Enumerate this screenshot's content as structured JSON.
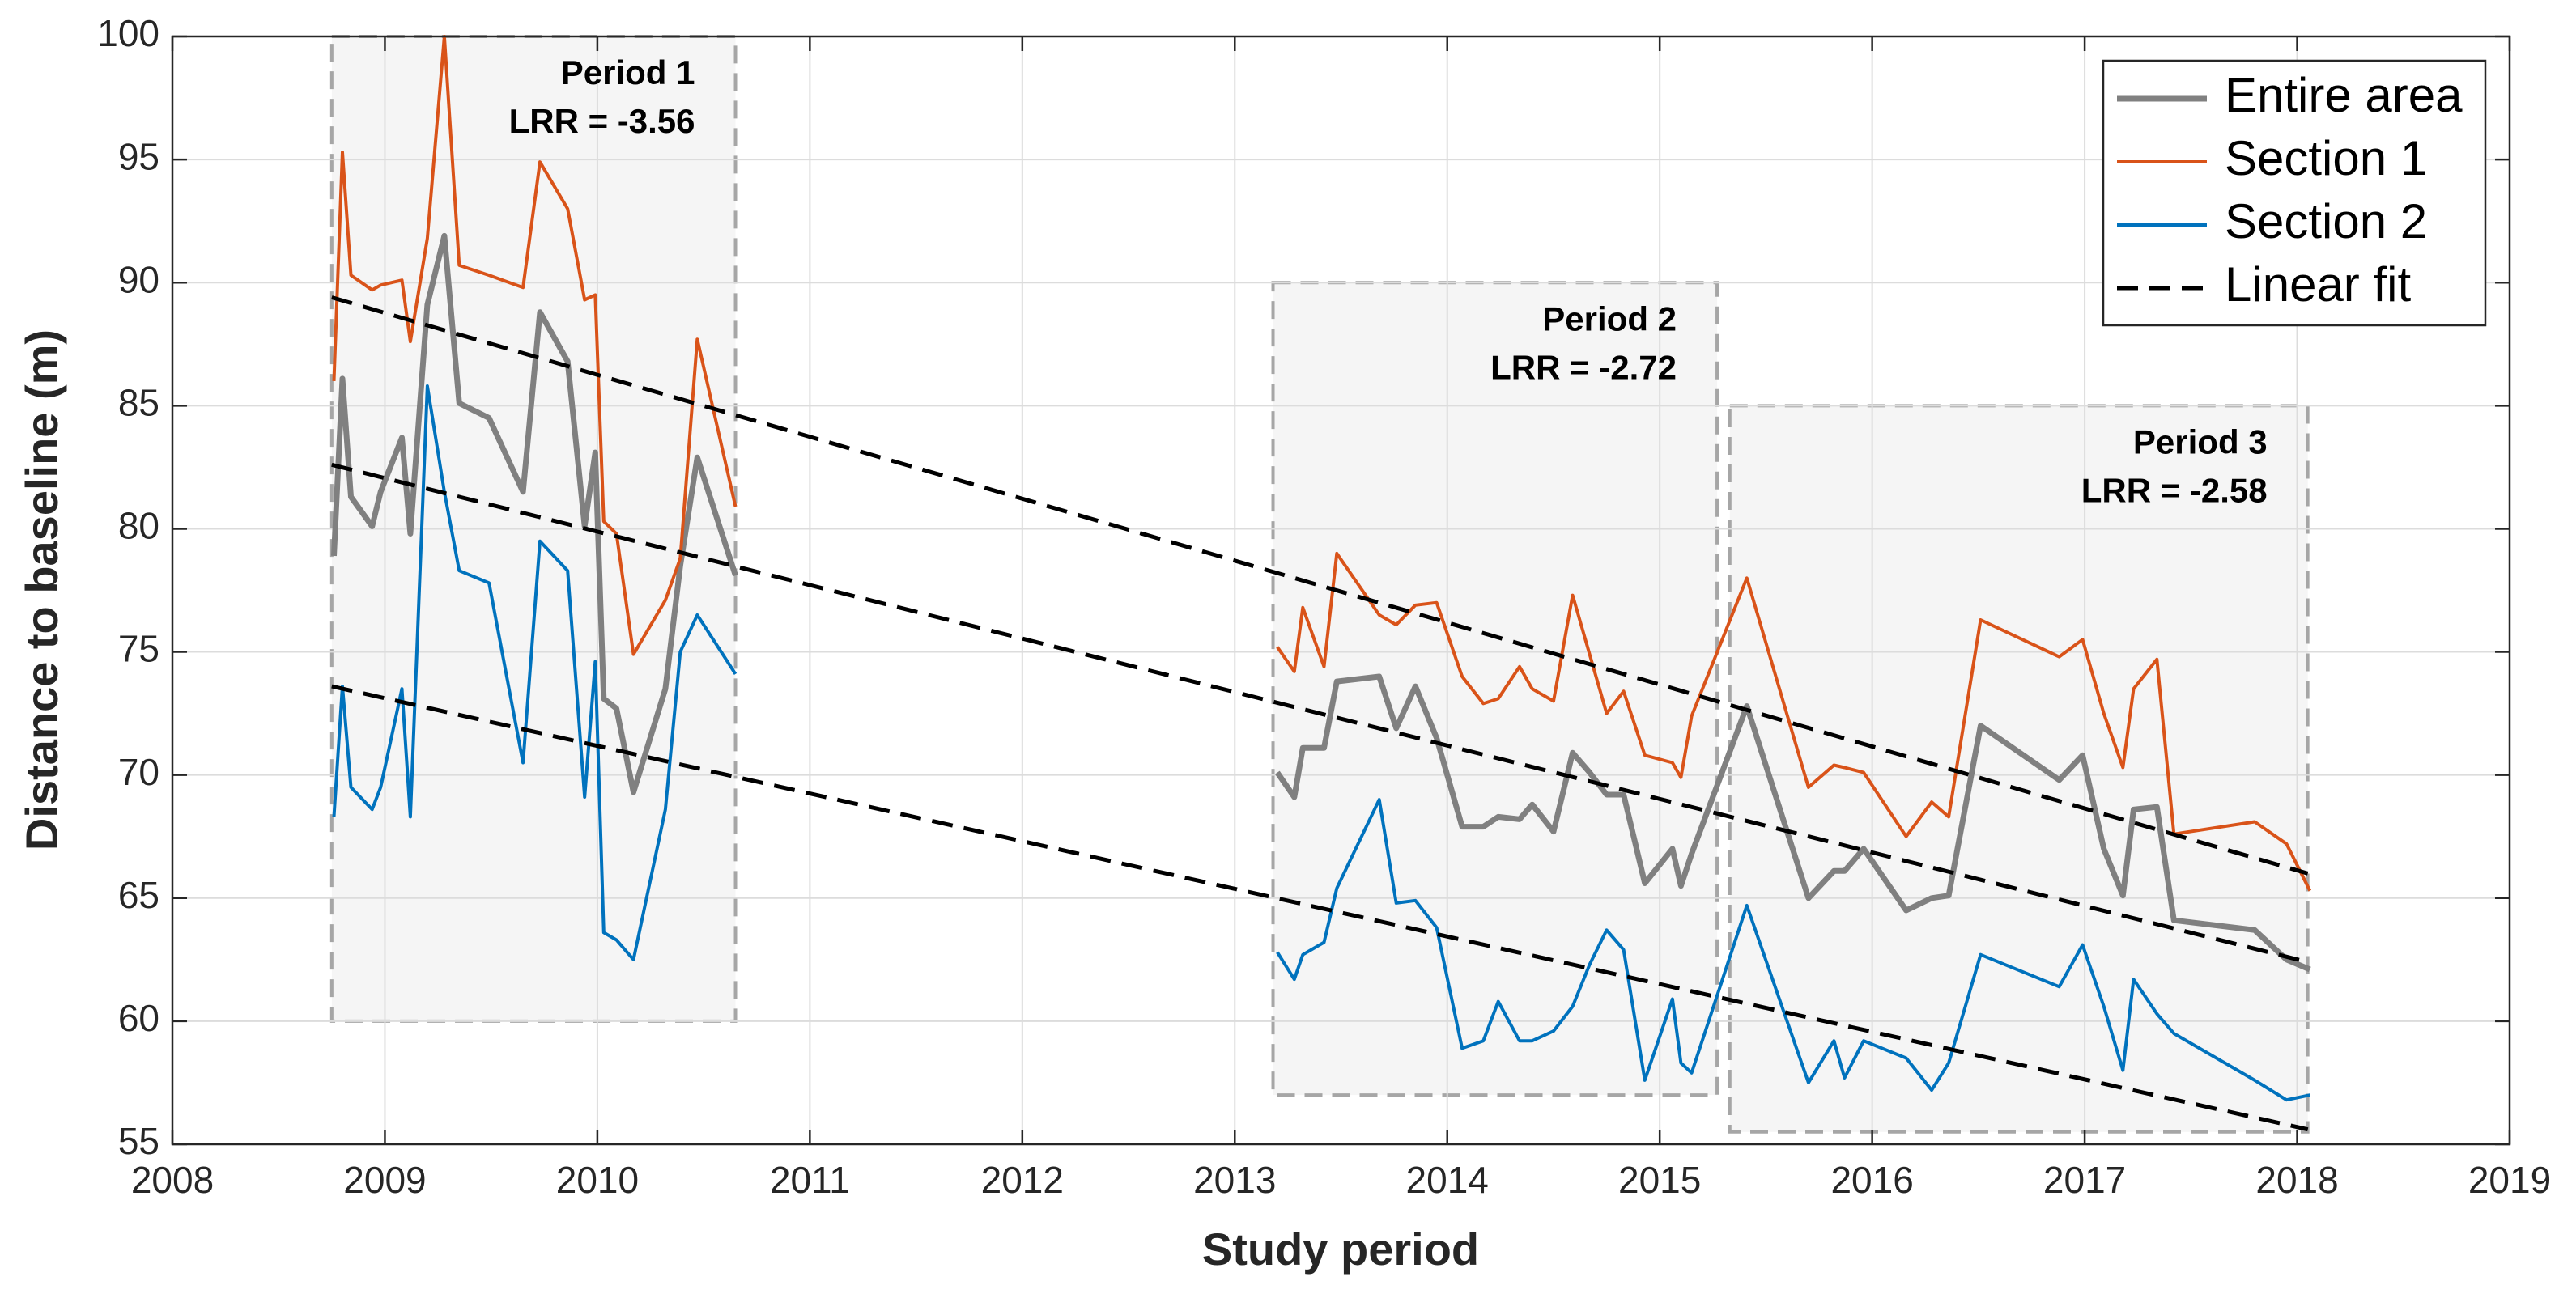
{
  "chart_data": {
    "type": "line",
    "xlabel": "Study period",
    "ylabel": "Distance to baseline (m)",
    "xlim": [
      2008,
      2019
    ],
    "xticks": [
      2008,
      2009,
      2010,
      2011,
      2012,
      2013,
      2014,
      2015,
      2016,
      2017,
      2018,
      2019
    ],
    "ylim": [
      55,
      100
    ],
    "yticks": [
      55,
      60,
      65,
      70,
      75,
      80,
      85,
      90,
      95,
      100
    ],
    "grid": true,
    "legend": "upper right",
    "x": [
      2008.76,
      2008.8,
      2008.84,
      2008.94,
      2008.98,
      2009.08,
      2009.12,
      2009.2,
      2009.28,
      2009.35,
      2009.49,
      2009.65,
      2009.73,
      2009.86,
      2009.94,
      2009.99,
      2010.03,
      2010.09,
      2010.17,
      2010.32,
      2010.39,
      2010.47,
      2010.65,
      null,
      2013.2,
      2013.28,
      2013.32,
      2013.42,
      2013.48,
      2013.68,
      2013.76,
      2013.85,
      2013.95,
      2014.07,
      2014.17,
      2014.24,
      2014.34,
      2014.4,
      2014.5,
      2014.59,
      2014.67,
      2014.75,
      2014.83,
      2014.93,
      2015.06,
      2015.1,
      2015.15,
      2015.41,
      2015.7,
      2015.82,
      2015.87,
      2015.96,
      2016.16,
      2016.28,
      2016.36,
      2016.51,
      2016.88,
      2016.99,
      2017.09,
      2017.18,
      2017.23,
      2017.34,
      2017.42,
      2017.8,
      2017.95,
      2018.06
    ],
    "series": [
      {
        "name": "Entire area",
        "color": "#808080",
        "width": 7,
        "values": [
          78.9,
          86.1,
          81.3,
          80.1,
          81.5,
          83.7,
          79.8,
          89.1,
          91.9,
          85.1,
          84.5,
          81.5,
          88.8,
          86.8,
          80.1,
          83.1,
          73.1,
          72.7,
          69.3,
          73.5,
          78.5,
          82.9,
          78.1,
          null,
          70.1,
          69.1,
          71.1,
          71.1,
          73.8,
          74.0,
          71.9,
          73.6,
          71.5,
          67.9,
          67.9,
          68.3,
          68.2,
          68.8,
          67.7,
          70.9,
          70.1,
          69.2,
          69.2,
          65.6,
          67.0,
          65.5,
          66.8,
          72.8,
          65.0,
          66.1,
          66.1,
          67.0,
          64.5,
          65.0,
          65.1,
          72.0,
          69.8,
          70.8,
          67.0,
          65.1,
          68.6,
          68.7,
          64.1,
          63.7,
          62.5,
          62.1
        ]
      },
      {
        "name": "Section 1",
        "color": "#d95319",
        "width": 4,
        "values": [
          86.0,
          95.3,
          90.3,
          89.7,
          89.9,
          90.1,
          87.6,
          91.8,
          100,
          90.7,
          90.3,
          89.8,
          94.9,
          93.0,
          89.3,
          89.5,
          80.3,
          79.8,
          74.9,
          77.1,
          78.8,
          87.7,
          80.9,
          null,
          75.2,
          74.2,
          76.8,
          74.4,
          79.0,
          76.5,
          76.1,
          76.9,
          77.0,
          74.0,
          72.9,
          73.1,
          74.4,
          73.5,
          73.0,
          77.3,
          74.9,
          72.5,
          73.4,
          70.8,
          70.5,
          69.9,
          72.4,
          78.0,
          69.5,
          70.4,
          70.3,
          70.1,
          67.5,
          68.9,
          68.3,
          76.3,
          74.8,
          75.5,
          72.5,
          70.3,
          73.5,
          74.7,
          67.6,
          68.1,
          67.2,
          65.3
        ]
      },
      {
        "name": "Section 2",
        "color": "#0072bd",
        "width": 4,
        "values": [
          68.3,
          73.6,
          69.5,
          68.6,
          69.5,
          73.5,
          68.3,
          85.8,
          81.5,
          78.3,
          77.8,
          70.5,
          79.5,
          78.3,
          69.1,
          74.6,
          63.6,
          63.3,
          62.5,
          68.6,
          75.0,
          76.5,
          74.1,
          null,
          62.8,
          61.7,
          62.7,
          63.2,
          65.4,
          69.0,
          64.8,
          64.9,
          63.8,
          58.9,
          59.2,
          60.8,
          59.2,
          59.2,
          59.6,
          60.6,
          62.3,
          63.7,
          62.9,
          57.6,
          60.9,
          58.3,
          57.9,
          64.7,
          57.5,
          59.2,
          57.7,
          59.2,
          58.5,
          57.2,
          58.3,
          62.7,
          61.4,
          63.1,
          60.6,
          58.0,
          61.7,
          60.3,
          59.5,
          57.6,
          56.8,
          57.0
        ]
      },
      {
        "name": "Linear fit",
        "color": "#000000",
        "width": 5,
        "dashed": true,
        "x": [
          2008.75,
          2018.05,
          null,
          2008.75,
          2018.05,
          null,
          2008.75,
          2018.05
        ],
        "values": [
          89.4,
          66.0,
          null,
          82.6,
          62.4,
          null,
          73.6,
          55.6
        ]
      }
    ],
    "periods": [
      {
        "label": "Period 1",
        "lrr": "LRR = -3.56",
        "xlim": [
          2008.75,
          2010.65
        ],
        "ylim": [
          60,
          100
        ]
      },
      {
        "label": "Period 2",
        "lrr": "LRR = -2.72",
        "xlim": [
          2013.18,
          2015.27
        ],
        "ylim": [
          57,
          90
        ]
      },
      {
        "label": "Period 3",
        "lrr": "LRR = -2.58",
        "xlim": [
          2015.33,
          2018.05
        ],
        "ylim": [
          55.5,
          85
        ]
      }
    ]
  }
}
